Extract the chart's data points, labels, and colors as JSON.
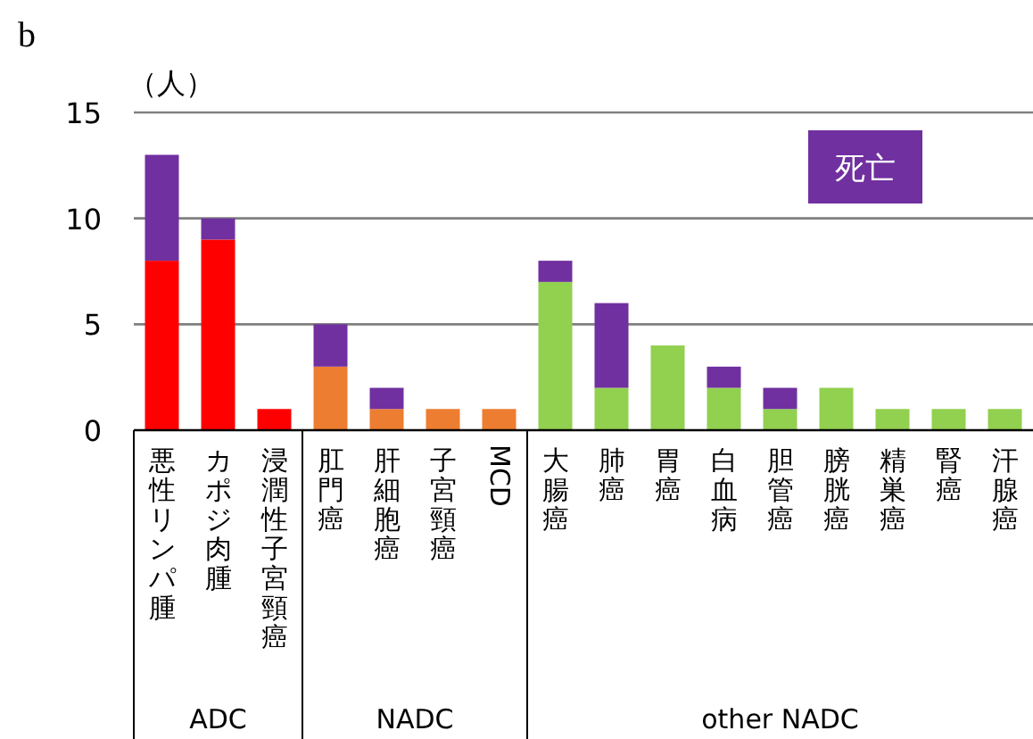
{
  "chart_data": {
    "type": "bar",
    "stacked": true,
    "ylabel": "（人）",
    "categories": [
      "悪性リンパ腫",
      "カポジ肉腫",
      "浸潤性子宮頸癌",
      "肛門癌",
      "肝細胞癌",
      "子宮頸癌",
      "MCD",
      "大腸癌",
      "肺癌",
      "胃癌",
      "白血病",
      "胆管癌",
      "膀胱癌",
      "精巣癌",
      "腎癌",
      "汗腺癌"
    ],
    "series": [
      {
        "colors": [
          "#ff0000",
          "#ff0000",
          "#ff0000",
          "#ed7d31",
          "#ed7d31",
          "#ed7d31",
          "#ed7d31",
          "#92d050",
          "#92d050",
          "#92d050",
          "#92d050",
          "#92d050",
          "#92d050",
          "#92d050",
          "#92d050",
          "#92d050"
        ],
        "values": [
          8,
          9,
          1,
          3,
          1,
          1,
          1,
          7,
          2,
          4,
          2,
          1,
          2,
          1,
          1,
          1
        ]
      },
      {
        "name": "死亡",
        "color": "#7030a0",
        "values": [
          5,
          1,
          null,
          2,
          1,
          null,
          null,
          1,
          4,
          null,
          1,
          1,
          null,
          null,
          null,
          null
        ]
      }
    ],
    "ylim": [
      0,
      15
    ],
    "yticks": [
      0,
      5,
      10,
      15
    ],
    "grid": "y",
    "legend": "top right",
    "annotations": [
      "b",
      "ADC",
      "NADC",
      "other NADC"
    ]
  }
}
